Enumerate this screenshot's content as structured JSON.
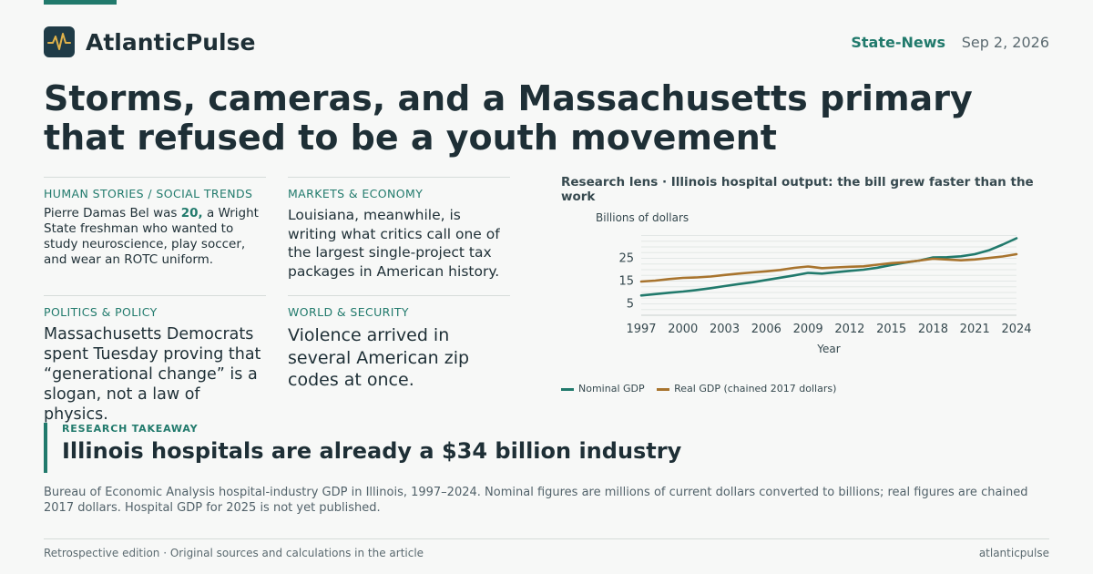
{
  "site": {
    "name": "AtlanticPulse",
    "section": "State-News",
    "date": "Sep 2, 2026",
    "logo_icon": "pulse-line-icon"
  },
  "headline": "Storms, cameras, and a Massachusetts primary that refused to be a youth movement",
  "cards": [
    {
      "kicker": "HUMAN STORIES / SOCIAL TRENDS",
      "dek_before": "Pierre Damas Bel was ",
      "dek_highlight": "20,",
      "dek_after": " a Wright State freshman who wanted to study neuroscience, play soccer, and wear an ROTC uniform."
    },
    {
      "kicker": "MARKETS & ECONOMY",
      "dek": "Louisiana, meanwhile, is writing what critics call one of the largest single-project tax packages in American history."
    },
    {
      "kicker": "POLITICS & POLICY",
      "dek": "Massachusetts Democrats spent Tuesday proving that “generational change” is a slogan, not a law of physics."
    },
    {
      "kicker": "WORLD & SECURITY",
      "dek": "Violence arrived in several American zip codes at once."
    }
  ],
  "chart_title": "Research lens · Illinois hospital output: the bill grew faster than the work",
  "chart_data": {
    "type": "line",
    "ylabel": "Billions of dollars",
    "xlabel": "Year",
    "yticks": [
      5,
      15,
      25
    ],
    "ylim": [
      0,
      36
    ],
    "xlim": [
      1997,
      2024
    ],
    "xticks": [
      1997,
      2000,
      2003,
      2006,
      2009,
      2012,
      2015,
      2018,
      2021,
      2024
    ],
    "grid": true,
    "legend_position": "bottom-left",
    "x": [
      1997,
      1998,
      1999,
      2000,
      2001,
      2002,
      2003,
      2004,
      2005,
      2006,
      2007,
      2008,
      2009,
      2010,
      2011,
      2012,
      2013,
      2014,
      2015,
      2016,
      2017,
      2018,
      2019,
      2020,
      2021,
      2022,
      2023,
      2024
    ],
    "series": [
      {
        "name": "Nominal GDP",
        "color": "#217a6c",
        "values": [
          8.7,
          9.3,
          9.9,
          10.4,
          11.1,
          11.9,
          12.8,
          13.7,
          14.5,
          15.5,
          16.5,
          17.5,
          18.6,
          18.3,
          18.9,
          19.5,
          20.0,
          20.9,
          22.1,
          23.1,
          24.0,
          25.4,
          25.5,
          25.9,
          26.8,
          28.5,
          31.0,
          33.8
        ]
      },
      {
        "name": "Real GDP (chained 2017 dollars)",
        "color": "#a8742e",
        "values": [
          14.8,
          15.2,
          15.9,
          16.4,
          16.6,
          17.0,
          17.7,
          18.3,
          18.8,
          19.3,
          19.9,
          20.8,
          21.4,
          20.7,
          21.0,
          21.3,
          21.5,
          22.2,
          22.9,
          23.3,
          24.0,
          24.8,
          24.5,
          24.1,
          24.5,
          25.1,
          25.8,
          26.8
        ]
      }
    ]
  },
  "takeaway": {
    "label": "RESEARCH TAKEAWAY",
    "text": "Illinois hospitals are already a $34 billion industry"
  },
  "note": "Bureau of Economic Analysis hospital-industry GDP in Illinois, 1997–2024. Nominal figures are millions of current dollars converted to billions; real figures are chained 2017 dollars. Hospital GDP for 2025 is not yet published.",
  "footer": {
    "left": "Retrospective edition · Original sources and calculations in the article",
    "right": "atlanticpulse"
  }
}
